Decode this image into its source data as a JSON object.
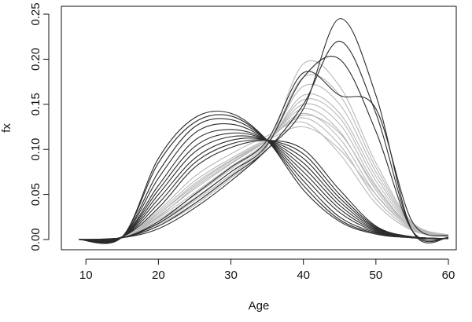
{
  "chart_data": {
    "type": "line",
    "title": "",
    "xlabel": "Age",
    "ylabel": "fx",
    "xlim": [
      9,
      60
    ],
    "ylim": [
      0,
      0.25
    ],
    "x_ticks": [
      10,
      20,
      30,
      40,
      50,
      60
    ],
    "y_ticks": [
      0.0,
      0.05,
      0.1,
      0.15,
      0.2,
      0.25
    ],
    "x_tick_labels": [
      "10",
      "20",
      "30",
      "40",
      "50",
      "60"
    ],
    "y_tick_labels": [
      "0.00",
      "0.05",
      "0.10",
      "0.15",
      "0.20",
      "0.25"
    ],
    "grid": false,
    "legend": "none",
    "colors": {
      "dark": "#2b2b2b",
      "light": "#b8b8b8",
      "axis": "#111111"
    },
    "series": [
      {
        "shade": "dark",
        "x": [
          9,
          15,
          20,
          25,
          30,
          35,
          40,
          45,
          50,
          55,
          60
        ],
        "y": [
          0,
          0.003,
          0.09,
          0.135,
          0.14,
          0.11,
          0.055,
          0.02,
          0.006,
          0.002,
          0.001
        ]
      },
      {
        "shade": "dark",
        "x": [
          9,
          15,
          20,
          25,
          30,
          35,
          40,
          45,
          50,
          55,
          60
        ],
        "y": [
          0,
          0.003,
          0.085,
          0.13,
          0.137,
          0.11,
          0.06,
          0.022,
          0.007,
          0.002,
          0.001
        ]
      },
      {
        "shade": "dark",
        "x": [
          9,
          15,
          20,
          25,
          30,
          35,
          40,
          45,
          50,
          55,
          60
        ],
        "y": [
          0,
          0.003,
          0.075,
          0.125,
          0.133,
          0.11,
          0.065,
          0.025,
          0.008,
          0.002,
          0.001
        ]
      },
      {
        "shade": "dark",
        "x": [
          9,
          15,
          20,
          25,
          30,
          35,
          40,
          45,
          50,
          55,
          60
        ],
        "y": [
          0,
          0.003,
          0.068,
          0.118,
          0.128,
          0.11,
          0.07,
          0.03,
          0.009,
          0.002,
          0.001
        ]
      },
      {
        "shade": "dark",
        "x": [
          9,
          15,
          20,
          25,
          30,
          35,
          40,
          45,
          50,
          55,
          60
        ],
        "y": [
          0,
          0.003,
          0.06,
          0.11,
          0.122,
          0.11,
          0.075,
          0.034,
          0.01,
          0.002,
          0.001
        ]
      },
      {
        "shade": "dark",
        "x": [
          9,
          15,
          20,
          25,
          30,
          35,
          40,
          45,
          50,
          55,
          60
        ],
        "y": [
          0,
          0.003,
          0.055,
          0.103,
          0.118,
          0.11,
          0.08,
          0.038,
          0.011,
          0.003,
          0.001
        ]
      },
      {
        "shade": "dark",
        "x": [
          9,
          15,
          20,
          25,
          30,
          35,
          40,
          45,
          50,
          55,
          60
        ],
        "y": [
          0,
          0.003,
          0.05,
          0.097,
          0.114,
          0.11,
          0.085,
          0.042,
          0.012,
          0.003,
          0.001
        ]
      },
      {
        "shade": "dark",
        "x": [
          9,
          15,
          20,
          25,
          30,
          35,
          40,
          45,
          50,
          55,
          60
        ],
        "y": [
          0,
          0.003,
          0.045,
          0.09,
          0.11,
          0.11,
          0.09,
          0.046,
          0.013,
          0.003,
          0.001
        ]
      },
      {
        "shade": "dark",
        "x": [
          9,
          15,
          20,
          25,
          30,
          35,
          40,
          45,
          50,
          55,
          60
        ],
        "y": [
          0,
          0.003,
          0.04,
          0.085,
          0.106,
          0.11,
          0.095,
          0.05,
          0.014,
          0.003,
          0.001
        ]
      },
      {
        "shade": "dark",
        "x": [
          9,
          15,
          20,
          25,
          30,
          35,
          40,
          45,
          50,
          55,
          60
        ],
        "y": [
          0,
          0.003,
          0.035,
          0.08,
          0.102,
          0.11,
          0.1,
          0.055,
          0.015,
          0.003,
          0.001
        ]
      },
      {
        "shade": "light",
        "x": [
          9,
          15,
          20,
          25,
          30,
          35,
          40,
          45,
          50,
          55,
          60
        ],
        "y": [
          0,
          0.002,
          0.032,
          0.07,
          0.095,
          0.115,
          0.13,
          0.095,
          0.04,
          0.01,
          0.003
        ]
      },
      {
        "shade": "light",
        "x": [
          9,
          15,
          20,
          25,
          30,
          35,
          40,
          45,
          50,
          55,
          60
        ],
        "y": [
          0,
          0.002,
          0.03,
          0.065,
          0.09,
          0.112,
          0.135,
          0.105,
          0.045,
          0.011,
          0.003
        ]
      },
      {
        "shade": "light",
        "x": [
          9,
          15,
          20,
          25,
          30,
          35,
          40,
          45,
          50,
          55,
          60
        ],
        "y": [
          0,
          0.002,
          0.028,
          0.06,
          0.087,
          0.11,
          0.14,
          0.112,
          0.05,
          0.012,
          0.003
        ]
      },
      {
        "shade": "light",
        "x": [
          9,
          15,
          20,
          25,
          30,
          35,
          40,
          45,
          50,
          55,
          60
        ],
        "y": [
          0,
          0.002,
          0.026,
          0.056,
          0.084,
          0.11,
          0.145,
          0.12,
          0.055,
          0.013,
          0.004
        ]
      },
      {
        "shade": "light",
        "x": [
          9,
          15,
          20,
          25,
          30,
          35,
          40,
          45,
          50,
          55,
          60
        ],
        "y": [
          0,
          0.002,
          0.024,
          0.052,
          0.081,
          0.108,
          0.15,
          0.128,
          0.06,
          0.014,
          0.004
        ]
      },
      {
        "shade": "light",
        "x": [
          9,
          15,
          20,
          25,
          30,
          35,
          40,
          45,
          50,
          55,
          60
        ],
        "y": [
          0,
          0.002,
          0.022,
          0.049,
          0.078,
          0.107,
          0.155,
          0.135,
          0.065,
          0.015,
          0.004
        ]
      },
      {
        "shade": "light",
        "x": [
          9,
          15,
          20,
          25,
          30,
          35,
          40,
          45,
          50,
          55,
          60
        ],
        "y": [
          0,
          0.002,
          0.02,
          0.046,
          0.075,
          0.106,
          0.16,
          0.14,
          0.07,
          0.016,
          0.004
        ]
      },
      {
        "shade": "light",
        "x": [
          9,
          15,
          20,
          25,
          30,
          35,
          40,
          45,
          50,
          55,
          60
        ],
        "y": [
          0,
          0.002,
          0.018,
          0.043,
          0.072,
          0.105,
          0.17,
          0.15,
          0.075,
          0.017,
          0.005
        ]
      },
      {
        "shade": "light",
        "x": [
          9,
          15,
          20,
          25,
          30,
          35,
          40,
          45,
          50,
          55,
          60
        ],
        "y": [
          0,
          0.002,
          0.017,
          0.04,
          0.07,
          0.104,
          0.18,
          0.16,
          0.08,
          0.018,
          0.005
        ]
      },
      {
        "shade": "light",
        "x": [
          9,
          15,
          20,
          25,
          30,
          35,
          40,
          45,
          50,
          55,
          60
        ],
        "y": [
          0,
          0.002,
          0.015,
          0.038,
          0.068,
          0.103,
          0.195,
          0.17,
          0.085,
          0.019,
          0.005
        ]
      },
      {
        "shade": "light",
        "x": [
          9,
          15,
          20,
          25,
          30,
          35,
          40,
          45,
          50,
          55,
          60
        ],
        "y": [
          0,
          0.002,
          0.028,
          0.062,
          0.088,
          0.11,
          0.125,
          0.1,
          0.05,
          0.012,
          0.004
        ]
      },
      {
        "shade": "light",
        "x": [
          9,
          15,
          20,
          25,
          30,
          35,
          40,
          45,
          50,
          55,
          60
        ],
        "y": [
          0,
          0.002,
          0.025,
          0.058,
          0.085,
          0.11,
          0.138,
          0.118,
          0.058,
          0.013,
          0.004
        ]
      },
      {
        "shade": "dark",
        "x": [
          9,
          15,
          20,
          25,
          30,
          35,
          40,
          45,
          50,
          55,
          60
        ],
        "y": [
          0,
          0.002,
          0.02,
          0.05,
          0.08,
          0.11,
          0.185,
          0.16,
          0.145,
          0.02,
          0.004
        ]
      },
      {
        "shade": "dark",
        "x": [
          9,
          15,
          20,
          25,
          30,
          35,
          40,
          45,
          50,
          55,
          60
        ],
        "y": [
          0,
          0.002,
          0.018,
          0.045,
          0.075,
          0.105,
          0.18,
          0.2,
          0.12,
          0.01,
          0.002
        ]
      },
      {
        "shade": "dark",
        "x": [
          9,
          15,
          20,
          25,
          30,
          35,
          40,
          45,
          50,
          55,
          60
        ],
        "y": [
          0,
          0.002,
          0.015,
          0.04,
          0.07,
          0.1,
          0.15,
          0.22,
          0.14,
          0.01,
          0.002
        ]
      },
      {
        "shade": "dark",
        "x": [
          9,
          15,
          20,
          25,
          30,
          35,
          40,
          45,
          50,
          55,
          60
        ],
        "y": [
          0,
          0.002,
          0.012,
          0.035,
          0.065,
          0.1,
          0.145,
          0.245,
          0.16,
          0.01,
          0.002
        ]
      }
    ]
  }
}
